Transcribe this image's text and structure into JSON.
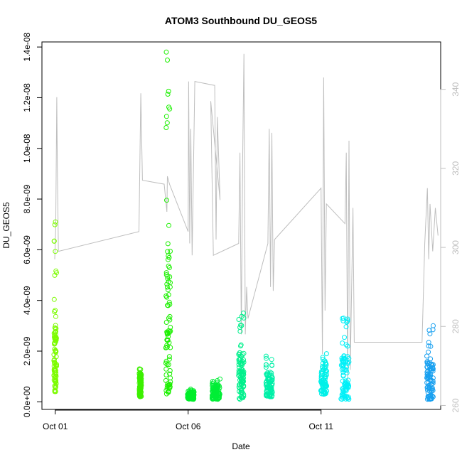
{
  "chart_data": {
    "type": "scatter",
    "title": "ATOM3 Southbound DU_GEOS5",
    "xlabel": "Date",
    "ylabel": "DU_GEOS5",
    "x_ticks": [
      {
        "day": 1,
        "label": "Oct 01"
      },
      {
        "day": 6,
        "label": "Oct 06"
      },
      {
        "day": 11,
        "label": "Oct 11"
      }
    ],
    "xlim_days": [
      0.5,
      15.5
    ],
    "ylim": [
      -3e-10,
      1.42e-08
    ],
    "y_ticks": [
      {
        "value": 0,
        "label": "0.0e+00"
      },
      {
        "value": 2e-09,
        "label": "2.0e-09"
      },
      {
        "value": 4e-09,
        "label": "4.0e-09"
      },
      {
        "value": 6e-09,
        "label": "6.0e-09"
      },
      {
        "value": 8e-09,
        "label": "8.0e-09"
      },
      {
        "value": 1e-08,
        "label": "1.0e-08"
      },
      {
        "value": 1.2e-08,
        "label": "1.2e-08"
      },
      {
        "value": 1.4e-08,
        "label": "1.4e-08"
      }
    ],
    "y2lim": [
      259,
      352
    ],
    "y2_ticks": [
      {
        "value": 260,
        "label": "260"
      },
      {
        "value": 280,
        "label": "280"
      },
      {
        "value": 300,
        "label": "300"
      },
      {
        "value": 320,
        "label": "320"
      },
      {
        "value": 340,
        "label": "340"
      }
    ],
    "colors": {
      "secondary_line": "#bebebe",
      "axis": "#000000"
    },
    "clusters": [
      {
        "day": 1.0,
        "width": 0.1,
        "ymin": 4e-10,
        "ymax": 7.1e-09,
        "dense_max": 2.9e-09,
        "color": "#7CFC00"
      },
      {
        "day": 4.2,
        "width": 0.08,
        "ymin": 2e-10,
        "ymax": 1.3e-09,
        "dense_max": 1.1e-09,
        "color": "#3CF000"
      },
      {
        "day": 5.25,
        "width": 0.18,
        "ymin": 3e-10,
        "ymax": 1.38e-08,
        "dense_max": 6.2e-09,
        "color": "#1CF000"
      },
      {
        "day": 6.1,
        "width": 0.25,
        "ymin": 1e-10,
        "ymax": 5e-10,
        "dense_max": 4e-10,
        "color": "#00EE2A"
      },
      {
        "day": 7.05,
        "width": 0.3,
        "ymin": 1e-10,
        "ymax": 9e-10,
        "dense_max": 7e-10,
        "color": "#00EE36"
      },
      {
        "day": 8.0,
        "width": 0.2,
        "ymin": 1e-10,
        "ymax": 3.5e-09,
        "dense_max": 2e-09,
        "color": "#00F08C"
      },
      {
        "day": 9.05,
        "width": 0.25,
        "ymin": 2e-10,
        "ymax": 1.8e-09,
        "dense_max": 1.2e-09,
        "color": "#00F0A8"
      },
      {
        "day": 11.1,
        "width": 0.22,
        "ymin": 3e-10,
        "ymax": 1.9e-09,
        "dense_max": 1.4e-09,
        "color": "#00F0E8"
      },
      {
        "day": 11.9,
        "width": 0.3,
        "ymin": 1e-10,
        "ymax": 3.3e-09,
        "dense_max": 2e-09,
        "color": "#00F0F8"
      },
      {
        "day": 15.1,
        "width": 0.25,
        "ymin": 1e-10,
        "ymax": 3e-09,
        "dense_max": 1.6e-09,
        "color": "#18A0F0"
      }
    ],
    "secondary_series": [
      [
        0.98,
        297
      ],
      [
        1.02,
        305
      ],
      [
        1.06,
        338
      ],
      [
        1.08,
        320
      ],
      [
        1.12,
        299
      ],
      [
        4.15,
        304
      ],
      [
        4.22,
        339
      ],
      [
        4.28,
        317
      ],
      [
        5.1,
        316
      ],
      [
        5.2,
        309
      ],
      [
        5.22,
        318
      ],
      [
        5.3,
        316
      ],
      [
        6.0,
        304
      ],
      [
        6.02,
        342
      ],
      [
        6.06,
        301
      ],
      [
        6.1,
        330
      ],
      [
        6.15,
        298
      ],
      [
        6.25,
        342
      ],
      [
        7.0,
        341
      ],
      [
        7.05,
        302
      ],
      [
        7.1,
        333
      ],
      [
        7.2,
        312
      ],
      [
        6.85,
        337
      ],
      [
        6.95,
        298
      ],
      [
        7.9,
        301
      ],
      [
        7.95,
        324
      ],
      [
        8.0,
        278
      ],
      [
        8.05,
        322
      ],
      [
        8.1,
        349
      ],
      [
        8.15,
        278
      ],
      [
        8.2,
        290
      ],
      [
        8.25,
        282
      ],
      [
        9.0,
        301
      ],
      [
        9.05,
        330
      ],
      [
        9.1,
        290
      ],
      [
        9.15,
        329
      ],
      [
        9.2,
        289
      ],
      [
        9.25,
        302
      ],
      [
        11.0,
        315
      ],
      [
        11.05,
        273
      ],
      [
        11.1,
        343
      ],
      [
        11.15,
        284
      ],
      [
        11.2,
        311
      ],
      [
        11.9,
        306
      ],
      [
        11.95,
        324
      ],
      [
        12.0,
        266
      ],
      [
        12.05,
        327
      ],
      [
        12.1,
        269
      ],
      [
        12.2,
        310
      ],
      [
        12.25,
        276
      ],
      [
        14.8,
        276
      ],
      [
        14.9,
        301
      ],
      [
        15.0,
        315
      ],
      [
        15.05,
        297
      ],
      [
        15.1,
        311
      ],
      [
        15.2,
        299
      ],
      [
        15.3,
        310
      ],
      [
        15.4,
        303
      ]
    ]
  }
}
